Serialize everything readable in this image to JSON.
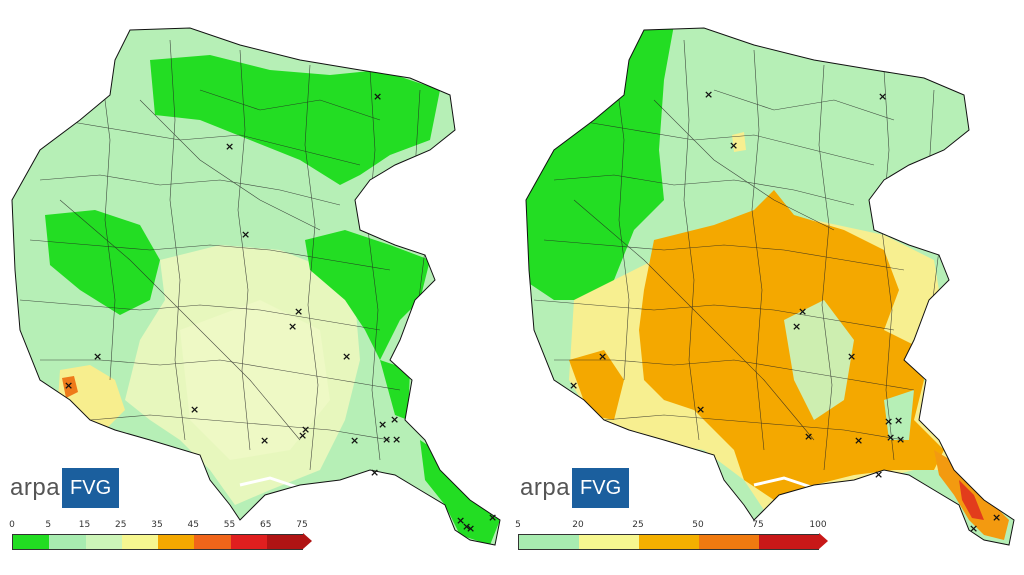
{
  "left_map": {
    "logo": {
      "text": "arpa",
      "badge": "FVG"
    },
    "scale": {
      "ticks": [
        "0",
        "5",
        "15",
        "25",
        "35",
        "45",
        "55",
        "65",
        "75"
      ],
      "colors": [
        "#22dd22",
        "#a8ecb0",
        "#cdf5b8",
        "#f6f790",
        "#f4a800",
        "#f0651a",
        "#e01f1f",
        "#b01414"
      ]
    }
  },
  "right_map": {
    "logo": {
      "text": "arpa",
      "badge": "FVG"
    },
    "scale": {
      "ticks": [
        "5",
        "20",
        "25",
        "50",
        "75",
        "100"
      ],
      "colors": [
        "#a8ecb0",
        "#f6f790",
        "#f4b000",
        "#f07a10",
        "#c81818"
      ]
    }
  },
  "colors": {
    "green": "#22dd22",
    "light_green": "#b3efb3",
    "pale_yellow": "#e6f7b8",
    "yellow": "#f8f190",
    "orange": "#f4a800",
    "red": "#e03b1a"
  }
}
